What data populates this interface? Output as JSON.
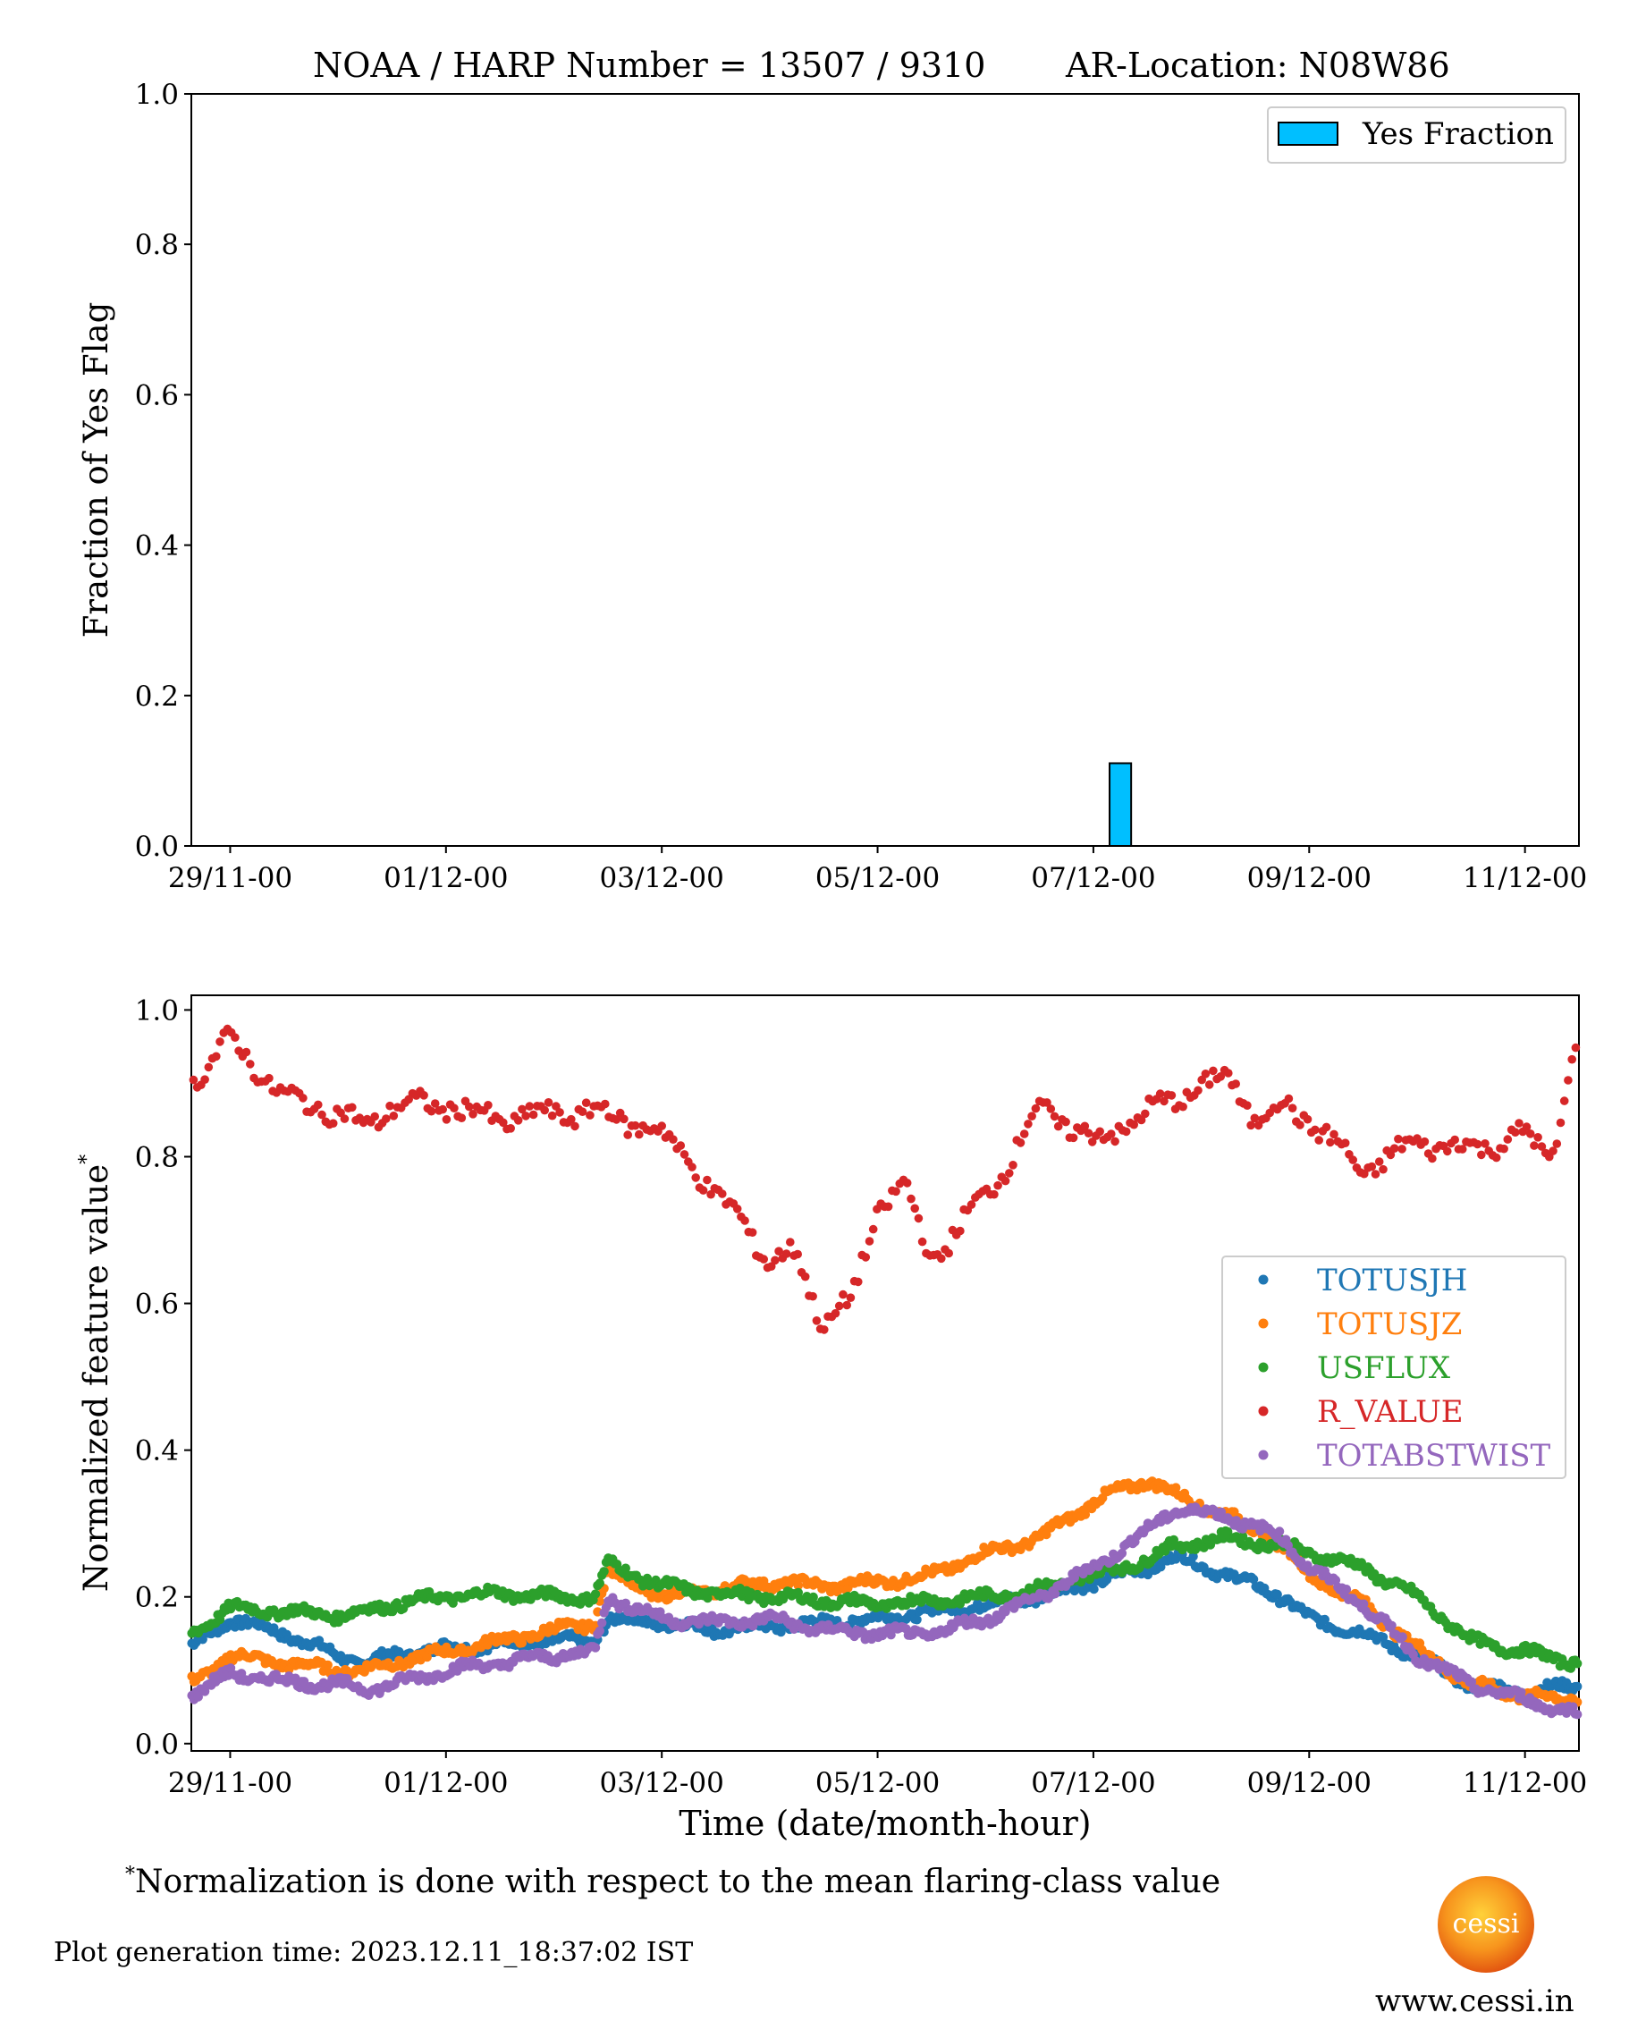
{
  "header": {
    "title_left": "NOAA / HARP Number = 13507 / 9310",
    "title_right": "AR-Location: N08W86"
  },
  "footer": {
    "footnote_mark": "*",
    "footnote_text": "Normalization is done with respect to the mean flaring-class value",
    "generation_time": "Plot generation time: 2023.12.11_18:37:02 IST",
    "website": "www.cessi.in",
    "logo_text": "cessi"
  },
  "colors": {
    "yes_bar": "#00bfff",
    "TOTUSJH": "#1f77b4",
    "TOTUSJZ": "#ff7f0e",
    "USFLUX": "#2ca02c",
    "R_VALUE": "#d62728",
    "TOTABSTWIST": "#9467bd"
  },
  "chart_data": [
    {
      "type": "bar",
      "ylabel": "Fraction of Yes Flag",
      "xlabel": "",
      "ylim": [
        0,
        1.0
      ],
      "yticks": [
        "0.0",
        "0.2",
        "0.4",
        "0.6",
        "0.8",
        "1.0"
      ],
      "xticks": [
        "29/11-00",
        "01/12-00",
        "03/12-00",
        "05/12-00",
        "07/12-00",
        "09/12-00",
        "11/12-00"
      ],
      "xlim_days": [
        28.64,
        41.5
      ],
      "legend": {
        "entries": [
          "Yes Fraction"
        ],
        "placement": "top-right"
      },
      "bars": [
        {
          "x_center": "07/12-06",
          "width_hours": 4.8,
          "value": 0.11
        }
      ]
    },
    {
      "type": "scatter",
      "ylabel": "Normalized feature value",
      "ylabel_mark": "*",
      "xlabel": "Time (date/month-hour)",
      "ylim": [
        -0.01,
        1.02
      ],
      "yticks": [
        "0.0",
        "0.2",
        "0.4",
        "0.6",
        "0.8",
        "1.0"
      ],
      "xticks": [
        "29/11-00",
        "01/12-00",
        "03/12-00",
        "05/12-00",
        "07/12-00",
        "09/12-00",
        "11/12-00"
      ],
      "legend": {
        "placement": "center-right",
        "entries": [
          "TOTUSJH",
          "TOTUSJZ",
          "USFLUX",
          "R_VALUE",
          "TOTABSTWIST"
        ]
      },
      "series": [
        {
          "name": "TOTUSJH",
          "x": [
            "28/11-15",
            "29/11-00",
            "29/11-12",
            "30/11-00",
            "30/11-06",
            "30/11-12",
            "01/12-00",
            "01/12-12",
            "02/12-00",
            "02/12-09",
            "02/12-12",
            "03/12-00",
            "03/12-12",
            "04/12-00",
            "04/12-12",
            "05/12-00",
            "05/12-12",
            "06/12-00",
            "06/12-12",
            "07/12-00",
            "07/12-12",
            "07/12-18",
            "08/12-06",
            "08/12-18",
            "09/12-00",
            "09/12-12",
            "10/12-00",
            "10/12-12",
            "11/12-00",
            "11/12-12"
          ],
          "y": [
            0.13,
            0.17,
            0.15,
            0.12,
            0.11,
            0.12,
            0.13,
            0.135,
            0.14,
            0.14,
            0.17,
            0.165,
            0.155,
            0.16,
            0.165,
            0.17,
            0.18,
            0.19,
            0.2,
            0.22,
            0.24,
            0.255,
            0.23,
            0.2,
            0.17,
            0.15,
            0.12,
            0.08,
            0.07,
            0.08
          ]
        },
        {
          "name": "TOTUSJZ",
          "x": [
            "28/11-15",
            "29/11-00",
            "29/11-12",
            "30/11-00",
            "30/11-06",
            "30/11-12",
            "01/12-00",
            "01/12-12",
            "02/12-00",
            "02/12-09",
            "02/12-12",
            "03/12-00",
            "03/12-12",
            "04/12-00",
            "04/12-12",
            "05/12-00",
            "05/12-12",
            "06/12-00",
            "06/12-12",
            "07/12-00",
            "07/12-12",
            "07/12-18",
            "08/12-06",
            "08/12-18",
            "09/12-00",
            "09/12-12",
            "10/12-00",
            "10/12-12",
            "11/12-00",
            "11/12-12"
          ],
          "y": [
            0.08,
            0.12,
            0.11,
            0.1,
            0.1,
            0.11,
            0.125,
            0.14,
            0.155,
            0.165,
            0.235,
            0.2,
            0.21,
            0.22,
            0.215,
            0.22,
            0.23,
            0.26,
            0.28,
            0.33,
            0.36,
            0.34,
            0.31,
            0.27,
            0.23,
            0.19,
            0.13,
            0.08,
            0.065,
            0.06
          ]
        },
        {
          "name": "USFLUX",
          "x": [
            "28/11-15",
            "29/11-00",
            "29/11-12",
            "30/11-00",
            "30/11-06",
            "30/11-12",
            "01/12-00",
            "01/12-12",
            "02/12-00",
            "02/12-09",
            "02/12-12",
            "03/12-00",
            "03/12-12",
            "04/12-00",
            "04/12-12",
            "05/12-00",
            "05/12-12",
            "06/12-00",
            "06/12-12",
            "07/12-00",
            "07/12-12",
            "07/12-18",
            "08/12-06",
            "08/12-18",
            "09/12-00",
            "09/12-12",
            "10/12-00",
            "10/12-12",
            "11/12-00",
            "11/12-12"
          ],
          "y": [
            0.15,
            0.185,
            0.18,
            0.175,
            0.18,
            0.19,
            0.2,
            0.205,
            0.2,
            0.2,
            0.245,
            0.215,
            0.205,
            0.2,
            0.195,
            0.19,
            0.195,
            0.2,
            0.21,
            0.23,
            0.25,
            0.27,
            0.28,
            0.27,
            0.26,
            0.24,
            0.2,
            0.14,
            0.125,
            0.11
          ]
        },
        {
          "name": "R_VALUE",
          "x": [
            "28/11-15",
            "29/11-00",
            "29/11-12",
            "30/11-00",
            "30/11-06",
            "30/11-12",
            "01/12-00",
            "01/12-12",
            "02/12-00",
            "02/12-09",
            "02/12-12",
            "03/12-00",
            "03/12-06",
            "03/12-12",
            "03/12-18",
            "04/12-00",
            "04/12-06",
            "04/12-12",
            "04/12-18",
            "05/12-00",
            "05/12-06",
            "05/12-12",
            "05/12-18",
            "06/12-00",
            "06/12-06",
            "06/12-12",
            "07/12-00",
            "07/12-12",
            "07/12-18",
            "08/12-06",
            "08/12-12",
            "08/12-18",
            "09/12-00",
            "09/12-12",
            "10/12-00",
            "10/12-12",
            "11/12-00",
            "11/12-06",
            "11/12-12"
          ],
          "y": [
            0.9,
            0.96,
            0.88,
            0.86,
            0.84,
            0.87,
            0.87,
            0.85,
            0.86,
            0.86,
            0.86,
            0.83,
            0.8,
            0.74,
            0.72,
            0.65,
            0.67,
            0.57,
            0.6,
            0.73,
            0.76,
            0.66,
            0.7,
            0.75,
            0.8,
            0.87,
            0.82,
            0.86,
            0.88,
            0.91,
            0.85,
            0.87,
            0.85,
            0.78,
            0.82,
            0.81,
            0.83,
            0.8,
            0.97
          ]
        },
        {
          "name": "TOTABSTWIST",
          "x": [
            "28/11-15",
            "29/11-00",
            "29/11-12",
            "30/11-00",
            "30/11-06",
            "30/11-12",
            "01/12-00",
            "01/12-12",
            "02/12-00",
            "02/12-09",
            "02/12-12",
            "03/12-00",
            "03/12-12",
            "04/12-00",
            "04/12-12",
            "05/12-00",
            "05/12-12",
            "06/12-00",
            "06/12-12",
            "07/12-00",
            "07/12-12",
            "07/12-18",
            "08/12-06",
            "08/12-18",
            "09/12-00",
            "09/12-12",
            "10/12-00",
            "10/12-12",
            "11/12-00",
            "11/12-12"
          ],
          "y": [
            0.065,
            0.095,
            0.085,
            0.08,
            0.075,
            0.08,
            0.1,
            0.11,
            0.12,
            0.125,
            0.2,
            0.17,
            0.165,
            0.17,
            0.155,
            0.15,
            0.15,
            0.17,
            0.2,
            0.24,
            0.29,
            0.32,
            0.31,
            0.28,
            0.24,
            0.19,
            0.12,
            0.08,
            0.06,
            0.04
          ]
        }
      ]
    }
  ]
}
